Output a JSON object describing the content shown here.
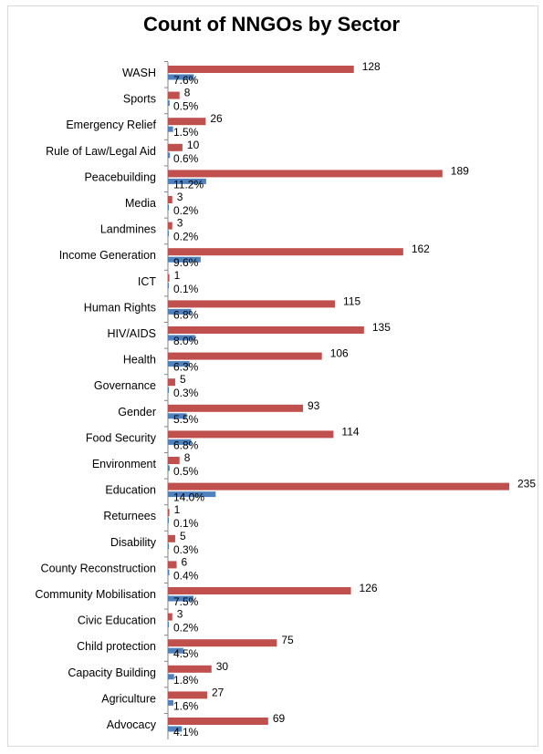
{
  "chart_data": {
    "type": "bar",
    "orientation": "horizontal",
    "title": "Count of NNGOs by Sector",
    "categories": [
      "WASH",
      "Sports",
      "Emergency Relief",
      "Rule of Law/Legal Aid",
      "Peacebuilding",
      "Media",
      "Landmines",
      "Income Generation",
      "ICT",
      "Human Rights",
      "HIV/AIDS",
      "Health",
      "Governance",
      "Gender",
      "Food Security",
      "Environment",
      "Education",
      "Returnees",
      "Disability",
      "County Reconstruction",
      "Community Mobilisation",
      "Civic Education",
      "Child protection",
      "Capacity Building",
      "Agriculture",
      "Advocacy"
    ],
    "series": [
      {
        "values": [
          128,
          8,
          26,
          10,
          189,
          3,
          3,
          162,
          1,
          115,
          135,
          106,
          5,
          93,
          114,
          8,
          235,
          1,
          5,
          6,
          126,
          3,
          75,
          30,
          27,
          69
        ],
        "labels": [
          "128",
          "8",
          "26",
          "10",
          "189",
          "3",
          "3",
          "162",
          "1",
          "115",
          "135",
          "106",
          "5",
          "93",
          "114",
          "8",
          "235",
          "1",
          "5",
          "6",
          "126",
          "3",
          "75",
          "30",
          "27",
          "69"
        ],
        "color": "#c0504d"
      },
      {
        "values": [
          7.6,
          0.5,
          1.5,
          0.6,
          11.2,
          0.2,
          0.2,
          9.6,
          0.1,
          6.8,
          8.0,
          6.3,
          0.3,
          5.5,
          6.8,
          0.5,
          14.0,
          0.1,
          0.3,
          0.4,
          7.5,
          0.2,
          4.5,
          1.8,
          1.6,
          4.1
        ],
        "labels": [
          "7.6%",
          "0.5%",
          "1.5%",
          "0.6%",
          "11.2%",
          "0.2%",
          "0.2%",
          "9.6%",
          "0.1%",
          "6.8%",
          "8.0%",
          "6.3%",
          "0.3%",
          "5.5%",
          "6.8%",
          "0.5%",
          "14.0%",
          "0.1%",
          "0.3%",
          "0.4%",
          "7.5%",
          "0.2%",
          "4.5%",
          "1.8%",
          "1.6%",
          "4.1%"
        ],
        "color": "#4f81bd"
      }
    ],
    "xlim": [
      0,
      235
    ],
    "grid": false,
    "legend": "none"
  }
}
